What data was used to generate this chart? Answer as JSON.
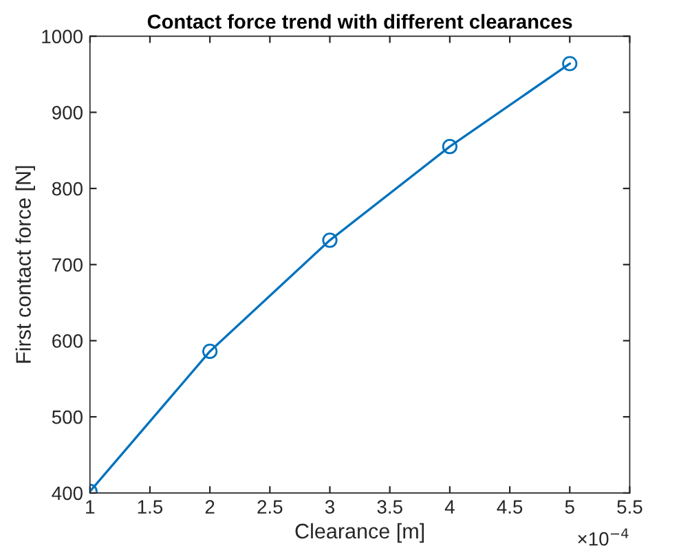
{
  "chart_data": {
    "type": "line",
    "title": "Contact force trend with different clearances",
    "xlabel": "Clearance [m]",
    "ylabel": "First contact force [N]",
    "x": [
      1,
      2,
      3,
      4,
      5
    ],
    "series": [
      {
        "color": "#0072bd",
        "values": [
          402,
          586,
          732,
          855,
          964
        ]
      }
    ],
    "xlim": [
      1,
      5.5
    ],
    "xticks": [
      1,
      1.5,
      2,
      2.5,
      3,
      3.5,
      4,
      4.5,
      5,
      5.5
    ],
    "ylim": [
      400,
      1000
    ],
    "yticks": [
      400,
      500,
      600,
      700,
      800,
      900,
      1000
    ],
    "annotations": [
      "×10$^{−4}$"
    ],
    "marker": "circle",
    "line_style": "solid",
    "grid": false,
    "legend": false
  }
}
